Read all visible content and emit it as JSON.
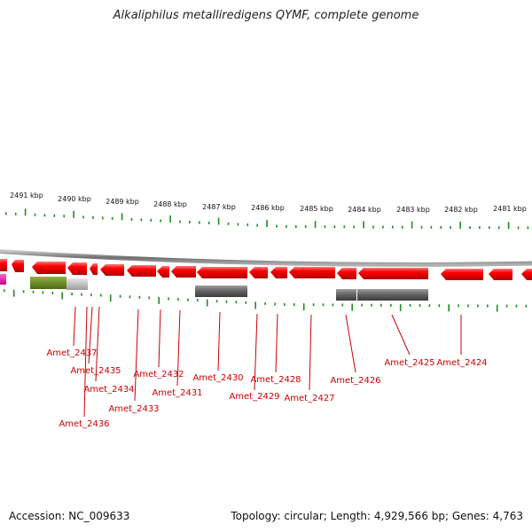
{
  "title": "Alkaliphilus metalliredigens QYMF, complete genome",
  "footer": {
    "accession": "Accession: NC_009633",
    "topology": "Topology: circular; Length: 4,929,566 bp; Genes: 4,763"
  },
  "colors": {
    "gene_forward": "#ff0000",
    "gene_reverse": "#ff0000",
    "pink_feature": "#ff00aa",
    "olive_feature": "#6b8e23",
    "grey_feature": "#696969",
    "tick_green": "#228b22",
    "backbone": "#8a8a8a",
    "label_red": "#cc0000"
  },
  "scale_labels": [
    "2491 kbp",
    "2490 kbp",
    "2489 kbp",
    "2488 kbp",
    "2487 kbp",
    "2486 kbp",
    "2485 kbp",
    "2484 kbp",
    "2483 kbp",
    "2482 kbp",
    "2481 kbp"
  ],
  "gene_labels": [
    "Amet_2437",
    "Amet_2435",
    "Amet_2434",
    "Amet_2433",
    "Amet_2436",
    "Amet_2432",
    "Amet_2431",
    "Amet_2430",
    "Amet_2429",
    "Amet_2428",
    "Amet_2427",
    "Amet_2426",
    "Amet_2425",
    "Amet_2424"
  ]
}
